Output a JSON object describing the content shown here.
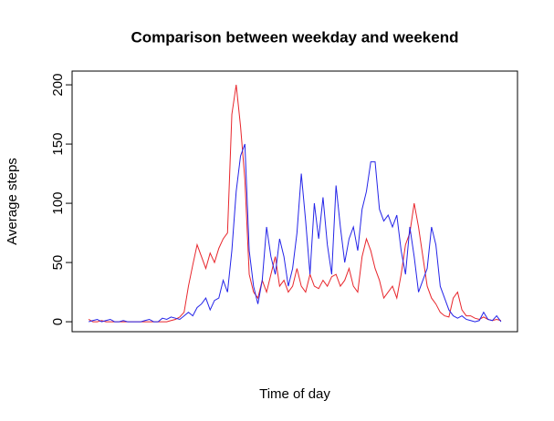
{
  "chart_data": {
    "type": "line",
    "title": "Comparison between weekday and weekend",
    "x_label": "Time of day",
    "y_label": "Average steps",
    "ylim": [
      -8.4,
      211.6
    ],
    "yticks": [
      0,
      50,
      100,
      150,
      200
    ],
    "series": [
      {
        "color": "#e8262c",
        "values": [
          2,
          0,
          0,
          1,
          0,
          0,
          0,
          0,
          0,
          0,
          0,
          0,
          0,
          0,
          0,
          0,
          0,
          0,
          0,
          1,
          2,
          4,
          8,
          30,
          48,
          65,
          55,
          45,
          58,
          50,
          62,
          70,
          75,
          175,
          200,
          165,
          120,
          40,
          25,
          20,
          35,
          25,
          40,
          55,
          30,
          35,
          25,
          30,
          45,
          30,
          25,
          40,
          30,
          28,
          35,
          30,
          38,
          40,
          30,
          35,
          45,
          30,
          25,
          55,
          70,
          60,
          45,
          35,
          20,
          25,
          30,
          20,
          40,
          65,
          75,
          100,
          80,
          55,
          30,
          20,
          15,
          8,
          5,
          4,
          20,
          25,
          10,
          5,
          5,
          3,
          2,
          4,
          2,
          1,
          2,
          1
        ]
      },
      {
        "color": "#2424e8",
        "values": [
          0,
          1,
          2,
          0,
          1,
          2,
          0,
          0,
          1,
          0,
          0,
          0,
          0,
          1,
          2,
          0,
          0,
          3,
          2,
          4,
          3,
          2,
          5,
          8,
          5,
          12,
          15,
          20,
          10,
          18,
          20,
          35,
          25,
          60,
          110,
          140,
          150,
          60,
          30,
          15,
          35,
          80,
          55,
          40,
          70,
          55,
          30,
          45,
          75,
          125,
          85,
          40,
          100,
          70,
          105,
          65,
          40,
          115,
          80,
          50,
          70,
          80,
          60,
          95,
          110,
          135,
          135,
          95,
          85,
          90,
          80,
          90,
          60,
          40,
          80,
          55,
          25,
          35,
          45,
          80,
          65,
          30,
          20,
          10,
          5,
          3,
          5,
          2,
          1,
          0,
          1,
          8,
          2,
          1,
          5,
          0
        ]
      }
    ]
  }
}
